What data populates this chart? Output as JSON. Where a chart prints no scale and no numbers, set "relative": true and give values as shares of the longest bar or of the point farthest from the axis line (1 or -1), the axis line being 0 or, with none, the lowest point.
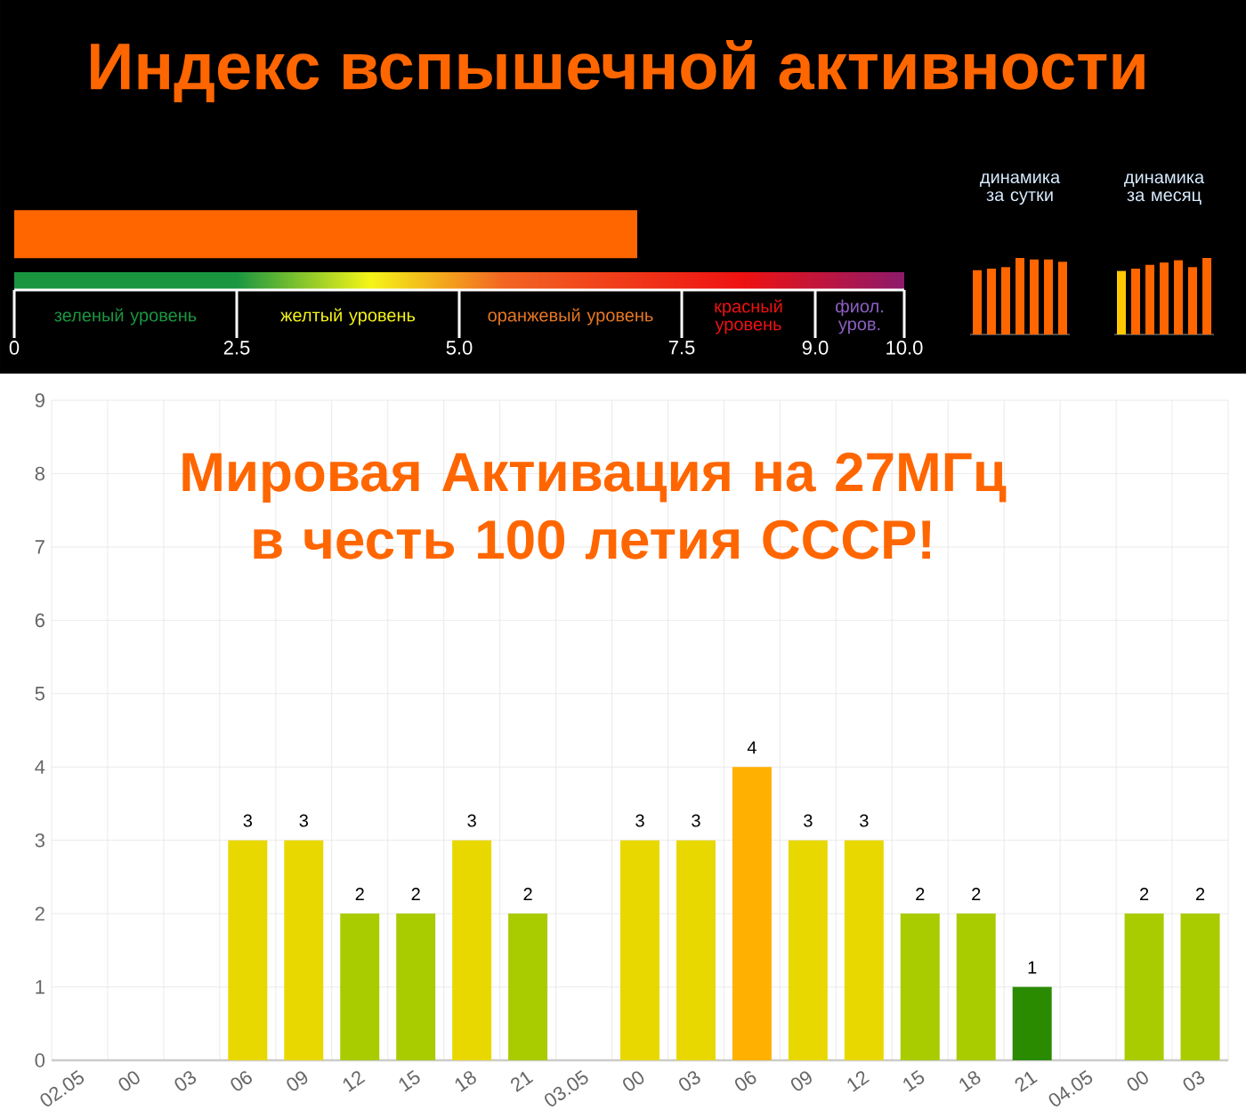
{
  "chart_data": [
    {
      "type": "bar",
      "orientation": "horizontal",
      "title": "Индекс вспышечной активности",
      "categories": [
        null
      ],
      "values": [
        7.0
      ],
      "color": "#ff6600",
      "xlim": [
        0,
        10
      ],
      "xticks": [
        0,
        {
          "value": 2.5,
          "label": "2.5"
        },
        {
          "value": 5,
          "label": "5.0"
        },
        {
          "value": 7.5,
          "label": "7.5"
        },
        {
          "value": 9,
          "label": "9.0"
        },
        {
          "value": 10,
          "label": "10.0"
        }
      ],
      "annotations": [
        "зеленый уровень",
        "желтый уровень",
        "оранжевый уровень",
        "красный уровень",
        "фиол. уров."
      ]
    },
    {
      "type": "bar",
      "title": "динамика за сутки",
      "relative": true,
      "categories": [
        null,
        null,
        null,
        null,
        null,
        null,
        null
      ],
      "values": [
        0.84,
        0.86,
        0.88,
        1,
        0.98,
        0.98,
        0.95
      ],
      "color": "#ff6600"
    },
    {
      "type": "bar",
      "title": "динамика за месяц",
      "relative": true,
      "categories": [
        null,
        null,
        null,
        null,
        null,
        null,
        null
      ],
      "values": [
        0.83,
        0.86,
        0.91,
        0.94,
        0.97,
        0.88,
        1
      ],
      "colors": [
        "#ffc800",
        "#ff6600",
        "#ff6600",
        "#ff6600",
        "#ff6600",
        "#ff6600",
        "#ff6600"
      ]
    },
    {
      "type": "bar",
      "categories": [
        "02.05",
        "00",
        "03",
        "06",
        "09",
        "12",
        "15",
        "18",
        "21",
        "03.05",
        "00",
        "03",
        "06",
        "09",
        "12",
        "15",
        "18",
        "21",
        "04.05",
        "00",
        "03"
      ],
      "values": [
        0,
        0,
        0,
        3,
        3,
        2,
        2,
        3,
        2,
        0,
        3,
        3,
        4,
        3,
        3,
        2,
        2,
        1,
        0,
        2,
        2
      ],
      "value_labels": [
        null,
        null,
        null,
        "3",
        "3",
        "2",
        "2",
        "3",
        "2",
        null,
        "3",
        "3",
        "4",
        "3",
        "3",
        "2",
        "2",
        "1",
        null,
        "2",
        "2"
      ],
      "colors": [
        "#2a8a00",
        "#2a8a00",
        "#2a8a00",
        "#e8d800",
        "#e8d800",
        "#a8cc00",
        "#a8cc00",
        "#e8d800",
        "#a8cc00",
        "#2a8a00",
        "#e8d800",
        "#e8d800",
        "#ffb000",
        "#e8d800",
        "#e8d800",
        "#a8cc00",
        "#a8cc00",
        "#2a8a00",
        "#2a8a00",
        "#a8cc00",
        "#a8cc00"
      ],
      "ylim": [
        0,
        9
      ],
      "yticks": [
        0,
        1,
        2,
        3,
        4,
        5,
        6,
        7,
        8,
        9
      ],
      "grid": true,
      "annotations": [
        "Мировая Активация на 27МГц в честь 100 летия СССР!"
      ]
    }
  ]
}
